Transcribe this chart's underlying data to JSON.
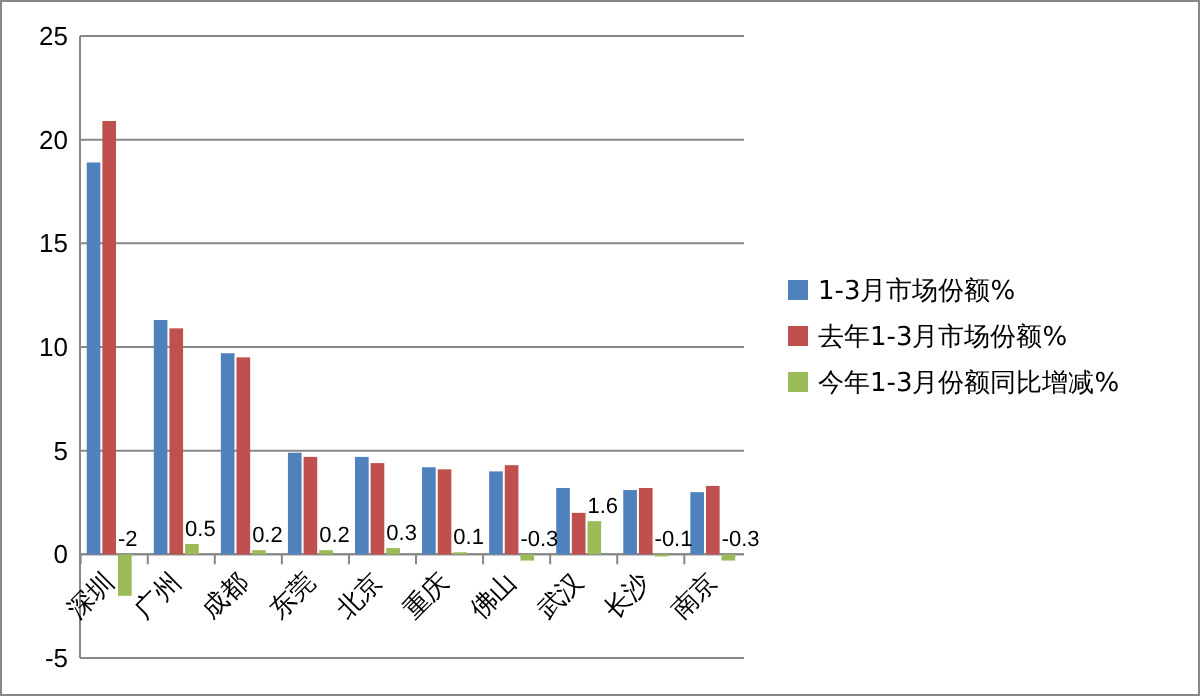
{
  "chart_data": {
    "type": "bar",
    "categories": [
      "深圳",
      "广州",
      "成都",
      "东莞",
      "北京",
      "重庆",
      "佛山",
      "武汉",
      "长沙",
      "南京"
    ],
    "series": [
      {
        "name": "1-3月市场份额%",
        "color": "#4f81bd",
        "values": [
          18.9,
          11.3,
          9.7,
          4.9,
          4.7,
          4.2,
          4.0,
          3.2,
          3.1,
          3.0
        ]
      },
      {
        "name": "去年1-3月市场份额%",
        "color": "#c0504d",
        "values": [
          20.9,
          10.9,
          9.5,
          4.7,
          4.4,
          4.1,
          4.3,
          2.0,
          3.2,
          3.3
        ]
      },
      {
        "name": "今年1-3月份额同比增减%",
        "color": "#9bbb59",
        "values": [
          -2,
          0.5,
          0.2,
          0.2,
          0.3,
          0.1,
          -0.3,
          1.6,
          -0.1,
          -0.3
        ],
        "value_labels": [
          "-2",
          "0.5",
          "0.2",
          "0.2",
          "0.3",
          "0.1",
          "-0.3",
          "1.6",
          "-0.1",
          "-0.3"
        ]
      }
    ],
    "ylim": [
      -5,
      25
    ],
    "yticks": [
      -5,
      0,
      5,
      10,
      15,
      20,
      25
    ],
    "grid": "y",
    "legend": "right"
  }
}
